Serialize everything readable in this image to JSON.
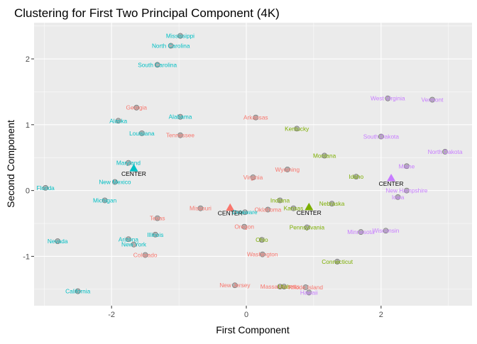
{
  "chart_data": {
    "type": "scatter",
    "title": "Clustering for First Two Principal Component (4K)",
    "xlabel": "First Component",
    "ylabel": "Second Component",
    "xlim": [
      -3.15,
      3.35
    ],
    "ylim": [
      -1.75,
      2.55
    ],
    "xticks": [
      -2,
      0,
      2
    ],
    "yticks": [
      -1,
      0,
      1,
      2
    ],
    "grid": true,
    "background": "#EBEBEB",
    "clusters": [
      {
        "id": 1,
        "color": "#F8766D"
      },
      {
        "id": 2,
        "color": "#7CAE00"
      },
      {
        "id": 3,
        "color": "#00BFC4"
      },
      {
        "id": 4,
        "color": "#C77CFF"
      }
    ],
    "center_label": "CENTER",
    "centers": [
      {
        "cluster": 3,
        "x": -1.67,
        "y": 0.34
      },
      {
        "cluster": 1,
        "x": -0.24,
        "y": -0.26
      },
      {
        "cluster": 2,
        "x": 0.93,
        "y": -0.25
      },
      {
        "cluster": 4,
        "x": 2.15,
        "y": 0.19
      }
    ],
    "points": [
      {
        "label": "Mississippi",
        "x": -0.98,
        "y": 2.35,
        "cluster": 3
      },
      {
        "label": "North Carolina",
        "x": -1.12,
        "y": 2.2,
        "cluster": 3
      },
      {
        "label": "South Carolina",
        "x": -1.32,
        "y": 1.91,
        "cluster": 3
      },
      {
        "label": "Georgia",
        "x": -1.63,
        "y": 1.26,
        "cluster": 1
      },
      {
        "label": "Alabama",
        "x": -0.98,
        "y": 1.12,
        "cluster": 3
      },
      {
        "label": "Alaska",
        "x": -1.9,
        "y": 1.06,
        "cluster": 3
      },
      {
        "label": "Louisiana",
        "x": -1.55,
        "y": 0.87,
        "cluster": 3
      },
      {
        "label": "Tennessee",
        "x": -0.98,
        "y": 0.84,
        "cluster": 1
      },
      {
        "label": "Arkansas",
        "x": 0.14,
        "y": 1.11,
        "cluster": 1
      },
      {
        "label": "Kentucky",
        "x": 0.75,
        "y": 0.94,
        "cluster": 2
      },
      {
        "label": "Montana",
        "x": 1.16,
        "y": 0.53,
        "cluster": 2
      },
      {
        "label": "West Virginia",
        "x": 2.1,
        "y": 1.4,
        "cluster": 4
      },
      {
        "label": "Vermont",
        "x": 2.76,
        "y": 1.38,
        "cluster": 4
      },
      {
        "label": "South Dakota",
        "x": 2.0,
        "y": 0.82,
        "cluster": 4
      },
      {
        "label": "North Dakota",
        "x": 2.95,
        "y": 0.59,
        "cluster": 4
      },
      {
        "label": "Maryland",
        "x": -1.75,
        "y": 0.42,
        "cluster": 3
      },
      {
        "label": "New Mexico",
        "x": -1.95,
        "y": 0.13,
        "cluster": 3
      },
      {
        "label": "Florida",
        "x": -2.98,
        "y": 0.04,
        "cluster": 3
      },
      {
        "label": "Michigan",
        "x": -2.1,
        "y": -0.15,
        "cluster": 3
      },
      {
        "label": "Wyoming",
        "x": 0.61,
        "y": 0.32,
        "cluster": 1
      },
      {
        "label": "Virginia",
        "x": 0.1,
        "y": 0.2,
        "cluster": 1
      },
      {
        "label": "Idaho",
        "x": 1.63,
        "y": 0.21,
        "cluster": 2
      },
      {
        "label": "Maine",
        "x": 2.38,
        "y": 0.37,
        "cluster": 4
      },
      {
        "label": "New Hampshire",
        "x": 2.38,
        "y": 0.0,
        "cluster": 4
      },
      {
        "label": "Iowa",
        "x": 2.25,
        "y": -0.1,
        "cluster": 4
      },
      {
        "label": "Indiana",
        "x": 0.5,
        "y": -0.15,
        "cluster": 2
      },
      {
        "label": "Kansas",
        "x": 0.7,
        "y": -0.27,
        "cluster": 2
      },
      {
        "label": "Nebraska",
        "x": 1.27,
        "y": -0.2,
        "cluster": 2
      },
      {
        "label": "Missouri",
        "x": -0.68,
        "y": -0.27,
        "cluster": 1
      },
      {
        "label": "Oklahoma",
        "x": 0.32,
        "y": -0.29,
        "cluster": 1
      },
      {
        "label": "Delaware",
        "x": -0.02,
        "y": -0.33,
        "cluster": 3
      },
      {
        "label": "Texas",
        "x": -1.32,
        "y": -0.42,
        "cluster": 1
      },
      {
        "label": "Oregon",
        "x": -0.03,
        "y": -0.55,
        "cluster": 1
      },
      {
        "label": "Pennsylvania",
        "x": 0.9,
        "y": -0.56,
        "cluster": 2
      },
      {
        "label": "Minnesota",
        "x": 1.7,
        "y": -0.63,
        "cluster": 4
      },
      {
        "label": "Wisconsin",
        "x": 2.07,
        "y": -0.61,
        "cluster": 4
      },
      {
        "label": "Illinois",
        "x": -1.35,
        "y": -0.67,
        "cluster": 3
      },
      {
        "label": "Arizona",
        "x": -1.75,
        "y": -0.74,
        "cluster": 3
      },
      {
        "label": "New York",
        "x": -1.67,
        "y": -0.82,
        "cluster": 3
      },
      {
        "label": "Nevada",
        "x": -2.8,
        "y": -0.77,
        "cluster": 3
      },
      {
        "label": "Ohio",
        "x": 0.23,
        "y": -0.75,
        "cluster": 2
      },
      {
        "label": "Colorado",
        "x": -1.5,
        "y": -0.98,
        "cluster": 1
      },
      {
        "label": "Washington",
        "x": 0.24,
        "y": -0.97,
        "cluster": 1
      },
      {
        "label": "Connecticut",
        "x": 1.35,
        "y": -1.08,
        "cluster": 2
      },
      {
        "label": "California",
        "x": -2.5,
        "y": -1.53,
        "cluster": 3
      },
      {
        "label": "New Jersey",
        "x": -0.17,
        "y": -1.44,
        "cluster": 1
      },
      {
        "label": "Massachusetts",
        "x": 0.5,
        "y": -1.46,
        "cluster": 1
      },
      {
        "label": "Utah",
        "x": 0.56,
        "y": -1.46,
        "cluster": 2
      },
      {
        "label": "Rhode Island",
        "x": 0.88,
        "y": -1.47,
        "cluster": 1
      },
      {
        "label": "Hawaii",
        "x": 0.93,
        "y": -1.55,
        "cluster": 4
      }
    ]
  }
}
